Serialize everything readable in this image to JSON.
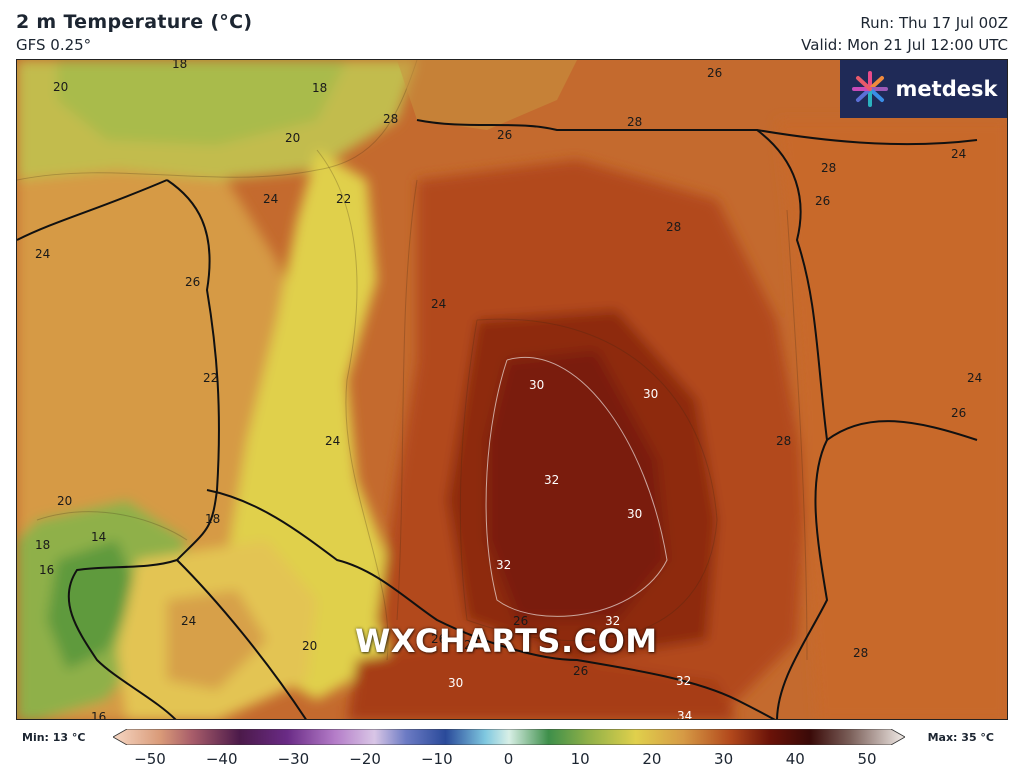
{
  "header": {
    "title": "2 m Temperature (°C)",
    "model": "GFS 0.25°",
    "run": "Run: Thu 17 Jul 00Z",
    "valid": "Valid: Mon 21 Jul 12:00 UTC"
  },
  "logo": {
    "text": "metdesk"
  },
  "watermark": "WXCHARTS.COM",
  "isotherm_labels": [
    "18",
    "18",
    "20",
    "20",
    "24",
    "22",
    "24",
    "26",
    "24",
    "22",
    "24",
    "20",
    "18",
    "14",
    "18",
    "16",
    "24",
    "20",
    "16",
    "28",
    "26",
    "28",
    "28",
    "26",
    "24",
    "26",
    "24",
    "26",
    "28",
    "28",
    "28",
    "30",
    "30",
    "32",
    "30",
    "32",
    "32",
    "26",
    "26",
    "24",
    "26",
    "30",
    "32",
    "34"
  ],
  "colorbar": {
    "min_label": "Min: 13 °C",
    "max_label": "Max: 35 °C",
    "ticks": [
      "−50",
      "−40",
      "−30",
      "−20",
      "−10",
      "0",
      "10",
      "20",
      "30",
      "40",
      "50"
    ],
    "range": [
      -50,
      50
    ]
  },
  "colors": {
    "text": "#1c2531",
    "logo_bg": "#1f2a57",
    "border": "#111111"
  }
}
